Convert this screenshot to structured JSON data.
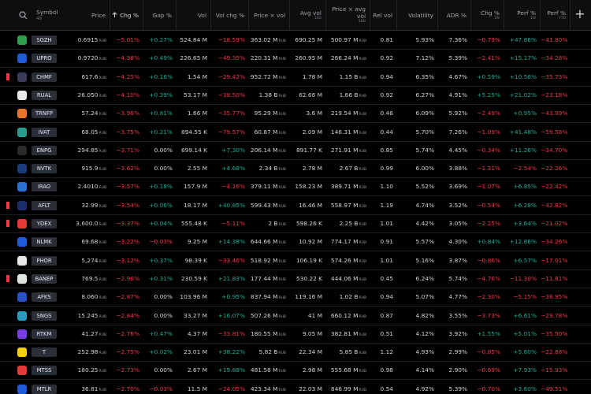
{
  "screener": {
    "symbol_header": "Symbol",
    "symbol_count": "49",
    "columns": [
      {
        "label": "Price",
        "unit": "RUB"
      },
      {
        "label": "Chg %",
        "signed": true,
        "sorted": true
      },
      {
        "label": "Gap %",
        "signed": true
      },
      {
        "label": "Vol"
      },
      {
        "label": "Vol chg %",
        "signed": true
      },
      {
        "label": "Price × vol",
        "unit": "RUB"
      },
      {
        "label": "Avg vol",
        "sub": "10D"
      },
      {
        "label": "Price × avg vol",
        "sub": "10D",
        "unit": "RUB"
      },
      {
        "label": "Rel vol"
      },
      {
        "label": "Volatility"
      },
      {
        "label": "ADR %"
      },
      {
        "label": "Chg %",
        "sub": "1W",
        "signed": true
      },
      {
        "label": "Perf %",
        "sub": "1W",
        "signed": true
      },
      {
        "label": "Perf %",
        "sub": "YTD",
        "signed": true
      }
    ],
    "rows": [
      {
        "symbol": "SGZH",
        "icon_color": "#2e9e4a",
        "cells": [
          "0.6915",
          "−5.01%",
          "+0.27%",
          "524.84 M",
          "−18.59%",
          "363.02 M",
          "690.25 M",
          "500.97 M",
          "0.81",
          "5.93%",
          "7.36%",
          "−0.79%",
          "+47.86%",
          "−41.80%"
        ]
      },
      {
        "symbol": "UPRO",
        "icon_color": "#1e5bd6",
        "cells": [
          "0.9720",
          "−4.38%",
          "+0.49%",
          "226.65 M",
          "−49.35%",
          "220.31 M",
          "260.95 M",
          "266.24 M",
          "0.92",
          "7.12%",
          "5.39%",
          "−2.41%",
          "+15.17%",
          "−34.28%"
        ]
      },
      {
        "symbol": "CHMF",
        "icon_color": "#3a3a5a",
        "flag": true,
        "cells": [
          "617.6",
          "−4.25%",
          "+0.16%",
          "1.54 M",
          "−29.42%",
          "952.72 M",
          "1.78 M",
          "1.15 B",
          "0.94",
          "6.35%",
          "4.67%",
          "+0.59%",
          "+10.56%",
          "−35.73%"
        ]
      },
      {
        "symbol": "RUAL",
        "icon_color": "#e8e8e8",
        "cells": [
          "26.050",
          "−4.10%",
          "+0.39%",
          "53.17 M",
          "−38.50%",
          "1.38 B",
          "62.66 M",
          "1.66 B",
          "0.92",
          "6.27%",
          "4.91%",
          "+5.25%",
          "+21.02%",
          "−23.18%"
        ]
      },
      {
        "symbol": "TRNFP",
        "icon_color": "#e8762c",
        "cells": [
          "57.24",
          "−3.96%",
          "+0.81%",
          "1.66 M",
          "−35.77%",
          "95.29 M",
          "3.6 M",
          "219.54 M",
          "0.48",
          "6.09%",
          "5.92%",
          "−2.49%",
          "+0.95%",
          "−43.99%"
        ]
      },
      {
        "symbol": "IVAT",
        "icon_color": "#2a9d8f",
        "cells": [
          "68.05",
          "−3.75%",
          "+0.21%",
          "894.55 K",
          "−79.57%",
          "60.87 M",
          "2.09 M",
          "146.31 M",
          "0.44",
          "5.70%",
          "7.26%",
          "−1.09%",
          "+41.48%",
          "−59.58%"
        ]
      },
      {
        "symbol": "ENPG",
        "icon_color": "#2b2b2b",
        "cells": [
          "294.85",
          "−3.71%",
          "0.00%",
          "699.14 K",
          "+7.30%",
          "206.14 M",
          "891.77 K",
          "271.91 M",
          "0.85",
          "5.74%",
          "4.45%",
          "−0.34%",
          "+11.26%",
          "−34.70%"
        ]
      },
      {
        "symbol": "NVTK",
        "icon_color": "#1a3b7a",
        "cells": [
          "915.9",
          "−3.62%",
          "0.00%",
          "2.55 M",
          "+4.68%",
          "2.34 B",
          "2.78 M",
          "2.67 B",
          "0.99",
          "6.00%",
          "3.88%",
          "−1.31%",
          "−2.54%",
          "−22.26%"
        ]
      },
      {
        "symbol": "IRAO",
        "icon_color": "#2c6fd6",
        "cells": [
          "2.4010",
          "−3.57%",
          "+0.18%",
          "157.9 M",
          "−4.16%",
          "379.11 M",
          "158.23 M",
          "389.71 M",
          "1.10",
          "5.52%",
          "3.69%",
          "−1.07%",
          "+6.85%",
          "−22.42%"
        ]
      },
      {
        "symbol": "AFLT",
        "icon_color": "#1c2f6b",
        "flag": true,
        "cells": [
          "32.99",
          "−3.54%",
          "+0.06%",
          "18.17 M",
          "+40.85%",
          "599.43 M",
          "16.46 M",
          "558.97 M",
          "1.19",
          "4.74%",
          "3.52%",
          "−0.54%",
          "+6.28%",
          "−42.82%"
        ]
      },
      {
        "symbol": "YDEX",
        "icon_color": "#e53935",
        "flag": true,
        "cells": [
          "3,600.0",
          "−3.37%",
          "+0.04%",
          "555.48 K",
          "−5.11%",
          "2 B",
          "598.26 K",
          "2.25 B",
          "1.01",
          "4.42%",
          "3.05%",
          "−2.25%",
          "+3.64%",
          "−21.02%"
        ]
      },
      {
        "symbol": "NLMK",
        "icon_color": "#1e5bd6",
        "cells": [
          "69.68",
          "−3.22%",
          "−0.03%",
          "9.25 M",
          "+14.38%",
          "644.66 M",
          "10.92 M",
          "774.17 M",
          "0.91",
          "5.57%",
          "4.30%",
          "+0.84%",
          "+12.86%",
          "−34.26%"
        ]
      },
      {
        "symbol": "PHOR",
        "icon_color": "#e8e8e8",
        "cells": [
          "5,274",
          "−3.12%",
          "+0.37%",
          "98.39 K",
          "−33.46%",
          "518.92 M",
          "106.19 K",
          "574.26 M",
          "1.01",
          "5.16%",
          "3.87%",
          "−0.86%",
          "+6.57%",
          "−17.01%"
        ]
      },
      {
        "symbol": "BANEP",
        "icon_color": "#dfe6df",
        "flag": true,
        "cells": [
          "769.5",
          "−2.96%",
          "+0.31%",
          "230.59 K",
          "+21.83%",
          "177.44 M",
          "530.22 K",
          "444.06 M",
          "0.45",
          "6.24%",
          "5.74%",
          "−4.76%",
          "−11.30%",
          "−11.81%"
        ]
      },
      {
        "symbol": "AFKS",
        "icon_color": "#2850c8",
        "cells": [
          "8.060",
          "−2.87%",
          "0.00%",
          "103.96 M",
          "+0.95%",
          "837.94 M",
          "119.16 M",
          "1.02 B",
          "0.94",
          "5.07%",
          "4.77%",
          "−2.30%",
          "−5.15%",
          "−38.95%"
        ]
      },
      {
        "symbol": "SNGS",
        "icon_color": "#2a9dbf",
        "cells": [
          "15.245",
          "−2.84%",
          "0.00%",
          "33.27 M",
          "+16.07%",
          "507.26 M",
          "41 M",
          "660.12 M",
          "0.87",
          "4.82%",
          "3.55%",
          "−3.73%",
          "+6.61%",
          "−29.78%"
        ]
      },
      {
        "symbol": "RTKM",
        "icon_color": "#7b3fe4",
        "cells": [
          "41.27",
          "−2.76%",
          "+0.47%",
          "4.37 M",
          "−33.81%",
          "180.55 M",
          "9.05 M",
          "382.81 M",
          "0.51",
          "4.12%",
          "3.92%",
          "+1.55%",
          "+5.01%",
          "−35.50%"
        ]
      },
      {
        "symbol": "T",
        "icon_color": "#f5d00a",
        "cells": [
          "252.98",
          "−2.75%",
          "+0.02%",
          "23.01 M",
          "+38.22%",
          "5.82 B",
          "22.34 M",
          "5.85 B",
          "1.12",
          "4.93%",
          "2.99%",
          "−0.85%",
          "+5.60%",
          "−22.88%"
        ]
      },
      {
        "symbol": "MTSS",
        "icon_color": "#e53935",
        "cells": [
          "180.25",
          "−2.73%",
          "0.00%",
          "2.67 M",
          "+19.88%",
          "481.58 M",
          "2.98 M",
          "555.68 M",
          "0.98",
          "4.14%",
          "2.90%",
          "−0.69%",
          "+7.93%",
          "−15.93%"
        ]
      },
      {
        "symbol": "MTLR",
        "icon_color": "#1e5bd6",
        "cells": [
          "36.81",
          "−2.70%",
          "−0.03%",
          "11.5 M",
          "−24.05%",
          "423.34 M",
          "22.03 M",
          "846.99 M",
          "0.54",
          "4.92%",
          "5.39%",
          "−0.70%",
          "+3.60%",
          "−49.51%"
        ]
      }
    ]
  }
}
